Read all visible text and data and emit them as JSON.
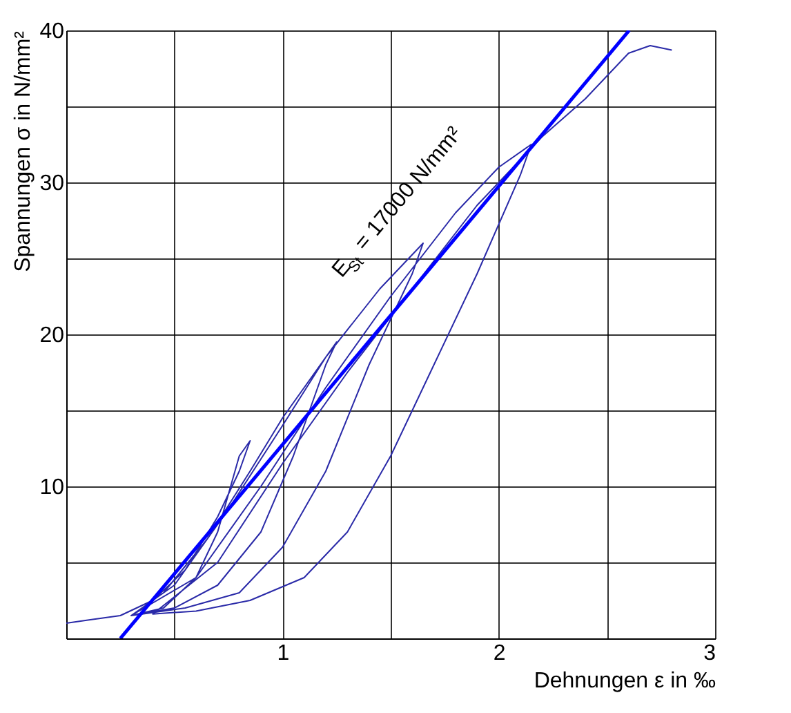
{
  "chart_data": {
    "type": "line",
    "xlabel": "Dehnungen ε in ‰",
    "ylabel": "Spannungen σ in N/mm²",
    "xlim": [
      0,
      3
    ],
    "xticks": [
      {
        "value": 0,
        "label": null
      },
      {
        "value": 0.5,
        "label": null
      },
      1,
      {
        "value": 1.5,
        "label": null
      },
      2,
      {
        "value": 2.5,
        "label": null
      },
      3
    ],
    "ylim": [
      0,
      40
    ],
    "yticks": [
      {
        "value": 0,
        "label": null
      },
      {
        "value": 5,
        "label": null
      },
      10,
      {
        "value": 15,
        "label": null
      },
      20,
      {
        "value": 25,
        "label": null
      },
      30,
      {
        "value": 35,
        "label": null
      },
      40
    ],
    "grid": true,
    "series": [
      {
        "color": "#2a2aa8",
        "x": [
          0,
          0.1,
          0.25,
          0.4,
          0.55,
          0.7,
          0.8,
          0.85,
          0.8,
          0.7,
          0.6,
          0.45,
          0.3,
          0.45,
          0.65,
          0.85,
          1.0,
          1.15,
          1.25,
          1.2,
          1.05,
          0.9,
          0.7,
          0.5,
          0.3,
          0.5,
          0.75,
          1.0,
          1.2,
          1.45,
          1.65,
          1.6,
          1.4,
          1.2,
          1.0,
          0.8,
          0.55,
          0.3,
          0.6,
          0.9,
          1.2,
          1.5,
          1.8,
          2.0,
          2.15,
          2.1,
          1.9,
          1.7,
          1.5,
          1.3,
          1.1,
          0.85,
          0.6,
          0.4,
          0.7,
          1.0,
          1.3,
          1.6,
          1.9,
          2.2,
          2.4,
          2.6,
          2.7,
          2.8
        ],
        "values": [
          1,
          1.2,
          1.5,
          2.5,
          4.5,
          8,
          11,
          13,
          12,
          7,
          4,
          2,
          1.5,
          3,
          6.5,
          11,
          14.5,
          17.5,
          19.5,
          18,
          12,
          7,
          3.5,
          2,
          1.5,
          3.5,
          8.5,
          14,
          18.5,
          23,
          26,
          24,
          18,
          11,
          6,
          3,
          2,
          1.5,
          4,
          10,
          16.5,
          22.5,
          28,
          31,
          32.5,
          30.5,
          24,
          18,
          12,
          7,
          4,
          2.5,
          1.8,
          1.6,
          5,
          11.5,
          17.5,
          23,
          28.5,
          33,
          35.5,
          38.5,
          39,
          38.7
        ]
      },
      {
        "type": "line",
        "color": "#0000ff",
        "x": [
          0.25,
          2.603
        ],
        "values": [
          0,
          40
        ]
      }
    ],
    "annotations": [
      "E$_{St}$ = 17000 N/mm²"
    ]
  }
}
